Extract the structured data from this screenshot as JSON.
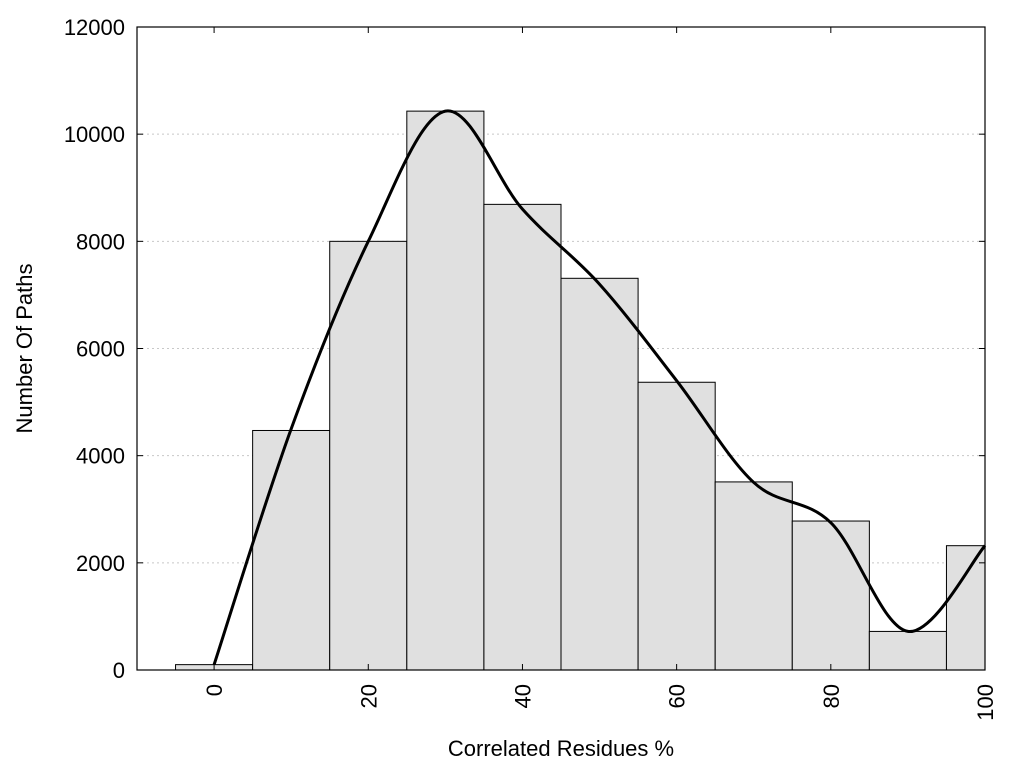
{
  "chart_data": {
    "type": "bar",
    "title": "",
    "xlabel": "Correlated Residues %",
    "ylabel": "Number Of Paths",
    "xlim": [
      -10,
      100
    ],
    "ylim": [
      0,
      12000
    ],
    "grid": "horizontal dotted",
    "x_ticks": [
      "0",
      "20",
      "40",
      "60",
      "80",
      "100"
    ],
    "y_ticks": [
      "0",
      "2000",
      "4000",
      "6000",
      "8000",
      "10000",
      "12000"
    ],
    "bin_width": 10,
    "bins": [
      {
        "center": 0,
        "value": 100
      },
      {
        "center": 10,
        "value": 4470
      },
      {
        "center": 20,
        "value": 8000
      },
      {
        "center": 30,
        "value": 10430
      },
      {
        "center": 40,
        "value": 8690
      },
      {
        "center": 50,
        "value": 7310
      },
      {
        "center": 60,
        "value": 5370
      },
      {
        "center": 70,
        "value": 3510
      },
      {
        "center": 80,
        "value": 2780
      },
      {
        "center": 90,
        "value": 720
      },
      {
        "center": 100,
        "value": 2320
      }
    ],
    "density_curve": {
      "x": [
        0,
        10,
        20,
        30,
        40,
        50,
        60,
        70,
        80,
        90,
        100
      ],
      "y": [
        100,
        4500,
        8000,
        10430,
        8600,
        7200,
        5400,
        3500,
        2750,
        720,
        2320
      ]
    },
    "colors": {
      "bar_fill": "#e0e0e0",
      "bar_stroke": "#000000",
      "curve": "#000000",
      "grid": "#c8c8c8"
    }
  }
}
